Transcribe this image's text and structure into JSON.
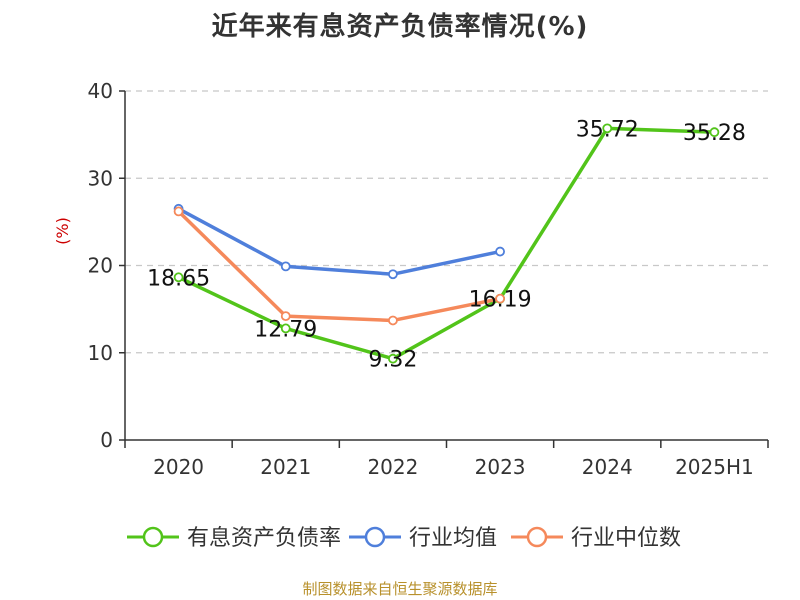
{
  "chart_data": {
    "type": "line",
    "title": "近年来有息资产负债率情况(%)",
    "ylabel": "(%)",
    "xlabel": "",
    "categories": [
      "2020",
      "2021",
      "2022",
      "2023",
      "2024",
      "2025H1"
    ],
    "ylim": [
      0,
      40
    ],
    "yticks": [
      0,
      10,
      20,
      30,
      40
    ],
    "grid": true,
    "legend_position": "bottom",
    "series": [
      {
        "name": "有息资产负债率",
        "values": [
          18.65,
          12.79,
          9.32,
          16.19,
          35.72,
          35.28
        ],
        "labels": [
          "18.65",
          "12.79",
          "9.32",
          "16.19",
          "35.72",
          "35.28"
        ],
        "color": "#52c41a"
      },
      {
        "name": "行业均值",
        "values": [
          26.5,
          19.9,
          19.0,
          21.6,
          null,
          null
        ],
        "color": "#4f7fdb"
      },
      {
        "name": "行业中位数",
        "values": [
          26.2,
          14.2,
          13.7,
          16.2,
          null,
          null
        ],
        "color": "#f5895b"
      }
    ]
  },
  "ylabel_color": "#cc0000",
  "footer": {
    "source": "制图数据来自恒生聚源数据库",
    "color": "#b8912c"
  }
}
